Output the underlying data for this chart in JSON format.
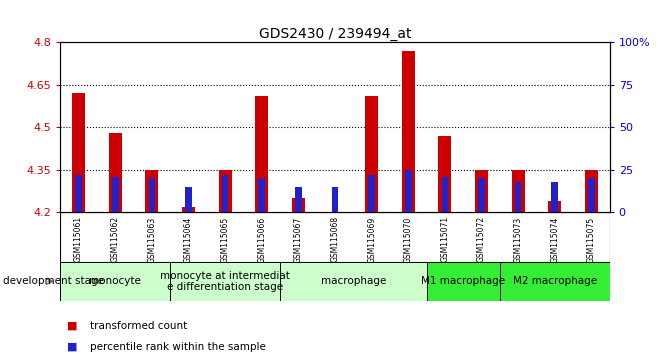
{
  "title": "GDS2430 / 239494_at",
  "samples": [
    "GSM115061",
    "GSM115062",
    "GSM115063",
    "GSM115064",
    "GSM115065",
    "GSM115066",
    "GSM115067",
    "GSM115068",
    "GSM115069",
    "GSM115070",
    "GSM115071",
    "GSM115072",
    "GSM115073",
    "GSM115074",
    "GSM115075"
  ],
  "red_values": [
    4.62,
    4.48,
    4.35,
    4.22,
    4.35,
    4.61,
    4.25,
    4.2,
    4.61,
    4.77,
    4.47,
    4.35,
    4.35,
    4.24,
    4.35
  ],
  "blue_values_pct": [
    22,
    21,
    20,
    15,
    22,
    20,
    15,
    15,
    22,
    25,
    21,
    20,
    18,
    18,
    20
  ],
  "y_min": 4.2,
  "y_max": 4.8,
  "y_ticks": [
    4.2,
    4.35,
    4.5,
    4.65,
    4.8
  ],
  "y_tick_labels": [
    "4.2",
    "4.35",
    "4.5",
    "4.65",
    "4.8"
  ],
  "right_y_ticks_pct": [
    0,
    25,
    50,
    75,
    100
  ],
  "right_y_labels": [
    "0",
    "25",
    "50",
    "75",
    "100%"
  ],
  "dotted_lines": [
    4.35,
    4.5,
    4.65
  ],
  "groups": [
    {
      "label": "monocyte",
      "start": 0,
      "end": 2,
      "color": "#ccffcc"
    },
    {
      "label": "monocyte at intermediat\ne differentiation stage",
      "start": 3,
      "end": 5,
      "color": "#ccffcc"
    },
    {
      "label": "macrophage",
      "start": 6,
      "end": 9,
      "color": "#ccffcc"
    },
    {
      "label": "M1 macrophage",
      "start": 10,
      "end": 11,
      "color": "#33ee33"
    },
    {
      "label": "M2 macrophage",
      "start": 12,
      "end": 14,
      "color": "#33ee33"
    }
  ],
  "red_bar_width": 0.35,
  "blue_bar_width": 0.18,
  "red_color": "#cc0000",
  "blue_color": "#2222cc",
  "bg_color": "#ffffff",
  "plot_bg_color": "#ffffff",
  "tick_color_left": "#cc0000",
  "tick_color_right": "#0000cc",
  "sample_bg_color": "#cccccc",
  "bar_base": 4.2,
  "group_label_fontsize": 7.5
}
